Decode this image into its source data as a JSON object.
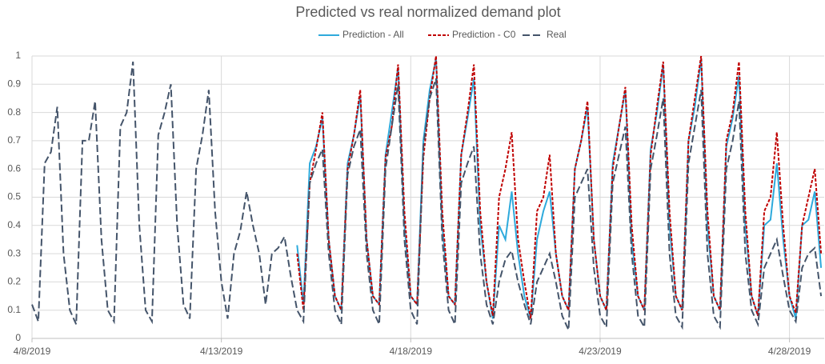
{
  "chart_data": {
    "type": "line",
    "title": "Predicted vs real normalized demand plot",
    "x": [
      0,
      4,
      8,
      12,
      16,
      20,
      24,
      28,
      32,
      36,
      40,
      44,
      48,
      52,
      56,
      60,
      64,
      68,
      72,
      76,
      80,
      84,
      88,
      92,
      96,
      100,
      104,
      108,
      112,
      116,
      120,
      124,
      128,
      132,
      136,
      140,
      144,
      148,
      152,
      156,
      160,
      164,
      168,
      172,
      176,
      180,
      184,
      188,
      192,
      196,
      200,
      204,
      208,
      212,
      216,
      220,
      224,
      228,
      232,
      236,
      240,
      244,
      248,
      252,
      256,
      260,
      264,
      268,
      272,
      276,
      280,
      284,
      288,
      292,
      296,
      300,
      304,
      308,
      312,
      316,
      320,
      324,
      328,
      332,
      336,
      340,
      344,
      348,
      352,
      356,
      360,
      364,
      368,
      372,
      376,
      380,
      384,
      388,
      392,
      396,
      400,
      404,
      408,
      412,
      416,
      420,
      424,
      428,
      432,
      436,
      440,
      444,
      448,
      452,
      456,
      460,
      464,
      468,
      472,
      476,
      480,
      484,
      488,
      492,
      496,
      500
    ],
    "series": [
      {
        "name": "Prediction - All",
        "color": "#2eaadc",
        "style": "solid",
        "values": [
          null,
          null,
          null,
          null,
          null,
          null,
          null,
          null,
          null,
          null,
          null,
          null,
          null,
          null,
          null,
          null,
          null,
          null,
          null,
          null,
          null,
          null,
          null,
          null,
          null,
          null,
          null,
          null,
          null,
          null,
          null,
          null,
          null,
          null,
          null,
          null,
          null,
          null,
          null,
          null,
          null,
          null,
          0.33,
          0.12,
          0.62,
          0.68,
          0.78,
          0.35,
          0.15,
          0.1,
          0.62,
          0.72,
          0.86,
          0.35,
          0.15,
          0.12,
          0.65,
          0.8,
          0.96,
          0.4,
          0.15,
          0.12,
          0.7,
          0.88,
          0.99,
          0.4,
          0.15,
          0.12,
          0.65,
          0.78,
          0.92,
          0.4,
          0.2,
          0.07,
          0.4,
          0.35,
          0.52,
          0.3,
          0.15,
          0.07,
          0.35,
          0.45,
          0.52,
          0.3,
          0.15,
          0.1,
          0.6,
          0.7,
          0.82,
          0.35,
          0.15,
          0.1,
          0.62,
          0.75,
          0.88,
          0.35,
          0.15,
          0.1,
          0.67,
          0.8,
          0.97,
          0.4,
          0.15,
          0.1,
          0.7,
          0.82,
          0.99,
          0.4,
          0.15,
          0.1,
          0.68,
          0.78,
          0.93,
          0.4,
          0.15,
          0.08,
          0.4,
          0.42,
          0.62,
          0.35,
          0.15,
          0.07,
          0.4,
          0.42,
          0.52,
          0.25
        ]
      },
      {
        "name": "Prediction - C0",
        "color": "#c00000",
        "style": "dotted",
        "values": [
          null,
          null,
          null,
          null,
          null,
          null,
          null,
          null,
          null,
          null,
          null,
          null,
          null,
          null,
          null,
          null,
          null,
          null,
          null,
          null,
          null,
          null,
          null,
          null,
          null,
          null,
          null,
          null,
          null,
          null,
          null,
          null,
          null,
          null,
          null,
          null,
          null,
          null,
          null,
          null,
          null,
          null,
          0.3,
          0.1,
          0.55,
          0.67,
          0.8,
          0.35,
          0.15,
          0.1,
          0.6,
          0.72,
          0.88,
          0.35,
          0.15,
          0.12,
          0.64,
          0.75,
          0.97,
          0.45,
          0.15,
          0.12,
          0.64,
          0.85,
          1.0,
          0.45,
          0.15,
          0.12,
          0.65,
          0.8,
          0.97,
          0.45,
          0.2,
          0.08,
          0.5,
          0.6,
          0.73,
          0.35,
          0.2,
          0.07,
          0.45,
          0.5,
          0.65,
          0.3,
          0.15,
          0.1,
          0.6,
          0.7,
          0.84,
          0.35,
          0.15,
          0.1,
          0.6,
          0.75,
          0.89,
          0.4,
          0.15,
          0.1,
          0.65,
          0.82,
          0.98,
          0.45,
          0.15,
          0.1,
          0.7,
          0.85,
          1.0,
          0.45,
          0.15,
          0.1,
          0.7,
          0.8,
          0.98,
          0.45,
          0.15,
          0.08,
          0.45,
          0.5,
          0.73,
          0.4,
          0.15,
          0.09,
          0.4,
          0.5,
          0.6,
          0.3
        ]
      },
      {
        "name": "Real",
        "color": "#44546a",
        "style": "dashed",
        "values": [
          0.12,
          0.06,
          0.62,
          0.66,
          0.82,
          0.3,
          0.1,
          0.05,
          0.7,
          0.7,
          0.84,
          0.35,
          0.1,
          0.06,
          0.75,
          0.8,
          0.98,
          0.4,
          0.1,
          0.06,
          0.72,
          0.8,
          0.9,
          0.4,
          0.12,
          0.07,
          0.6,
          0.72,
          0.88,
          0.45,
          0.2,
          0.07,
          0.3,
          0.38,
          0.52,
          0.4,
          0.3,
          0.12,
          0.3,
          0.32,
          0.36,
          0.22,
          0.1,
          0.06,
          0.55,
          0.62,
          0.67,
          0.3,
          0.1,
          0.05,
          0.58,
          0.68,
          0.74,
          0.3,
          0.1,
          0.05,
          0.6,
          0.75,
          0.9,
          0.35,
          0.1,
          0.05,
          0.68,
          0.85,
          0.92,
          0.35,
          0.1,
          0.05,
          0.55,
          0.62,
          0.68,
          0.3,
          0.12,
          0.05,
          0.2,
          0.28,
          0.31,
          0.2,
          0.12,
          0.05,
          0.2,
          0.25,
          0.3,
          0.2,
          0.08,
          0.03,
          0.5,
          0.55,
          0.6,
          0.25,
          0.08,
          0.04,
          0.55,
          0.65,
          0.75,
          0.3,
          0.08,
          0.04,
          0.6,
          0.72,
          0.85,
          0.3,
          0.08,
          0.04,
          0.62,
          0.75,
          0.88,
          0.3,
          0.08,
          0.04,
          0.6,
          0.7,
          0.84,
          0.3,
          0.1,
          0.05,
          0.25,
          0.3,
          0.35,
          0.22,
          0.1,
          0.06,
          0.25,
          0.3,
          0.32,
          0.15
        ]
      }
    ],
    "xlim": [
      0,
      502
    ],
    "xticks": [
      {
        "value": 0,
        "label": "4/8/2019"
      },
      {
        "value": 120,
        "label": "4/13/2019"
      },
      {
        "value": 240,
        "label": "4/18/2019"
      },
      {
        "value": 360,
        "label": "4/23/2019"
      },
      {
        "value": 480,
        "label": "4/28/2019"
      }
    ],
    "ylim": [
      0,
      1
    ],
    "yticks": [
      0,
      0.1,
      0.2,
      0.3,
      0.4,
      0.5,
      0.6,
      0.7,
      0.8,
      0.9,
      1
    ],
    "grid": true,
    "legend": "top"
  }
}
